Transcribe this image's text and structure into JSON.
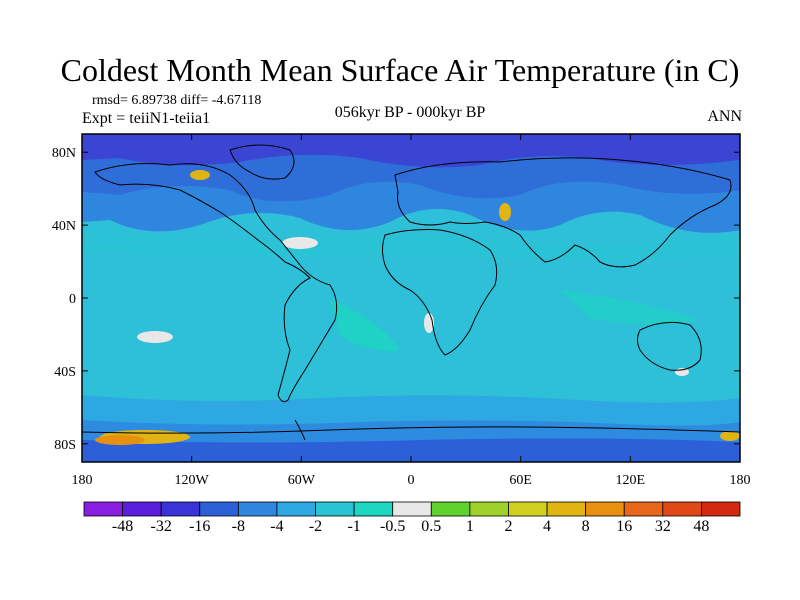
{
  "title": "Coldest Month Mean Surface Air Temperature (in C)",
  "stats": "rmsd= 6.89738 diff= -4.67118",
  "experiment": "Expt = teiiN1-teiia1",
  "period": "056kyr BP - 000kyr BP",
  "season": "ANN",
  "lat_ticks": [
    "80N",
    "40N",
    "0",
    "40S",
    "80S"
  ],
  "lon_ticks": [
    "180",
    "120W",
    "60W",
    "0",
    "60E",
    "120E",
    "180"
  ],
  "colorbar": {
    "labels": [
      "-48",
      "-32",
      "-16",
      "-8",
      "-4",
      "-2",
      "-1",
      "-0.5",
      "0.5",
      "1",
      "2",
      "4",
      "8",
      "16",
      "32",
      "48"
    ],
    "colors": [
      "#8a1ee0",
      "#5a1fdc",
      "#3a34d8",
      "#2d5fd8",
      "#2f86de",
      "#2ea8e2",
      "#28c4d4",
      "#1dd6c0",
      "#e8e8e8",
      "#5fd22e",
      "#9ed12a",
      "#cfd020",
      "#e0b412",
      "#e89010",
      "#e8661a",
      "#e04818",
      "#d42810"
    ]
  },
  "colors": {
    "ocean_base": "#2ec0d8",
    "northern_cold": "#2f6ed8",
    "arctic": "#3a45d4",
    "antarctic": "#2d8ce0",
    "warm_anomaly": "#e0b412",
    "neutral": "#e8e8e8"
  }
}
